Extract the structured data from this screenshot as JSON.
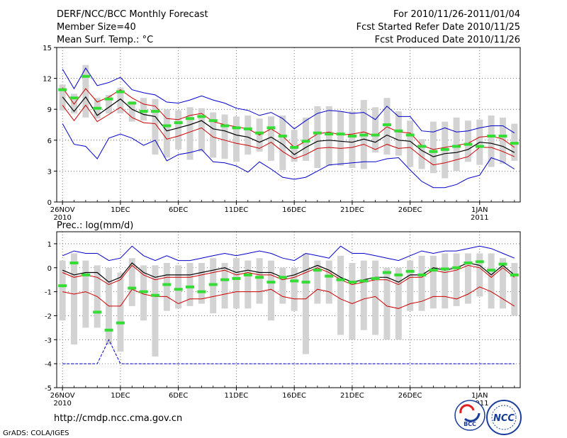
{
  "header": {
    "title": "DERF/NCC/BCC Monthly Forecast",
    "member_size": "Member Size=40",
    "variable": "Mean Surf. Temp.: °C",
    "for_range": "For 2010/11/26-2011/01/04",
    "fcst_started": "Fcst Started Refer Date 2010/11/25",
    "fcst_produced": "Fcst Produced Date 2010/11/26"
  },
  "footer": {
    "url": "http://cmdp.ncc.cma.gov.cn",
    "credit": "GrADS: COLA/IGES",
    "logo_left_text": "BCC",
    "logo_right_text": "NCC"
  },
  "colors": {
    "max_min": "#0000cc",
    "pct": "#cc0000",
    "mean": "#000000",
    "obs": "#33dd33",
    "box": "#d3d3d3",
    "grid": "#555555"
  },
  "chart_data": [
    {
      "type": "line",
      "title": "Mean Surf. Temp.: °C",
      "ylim": [
        0,
        15
      ],
      "yticks": [
        0,
        3,
        6,
        9,
        12,
        15
      ],
      "xticks": [
        {
          "day": 1,
          "label": "26NOV",
          "sub": "2010"
        },
        {
          "day": 6,
          "label": "1DEC",
          "sub": ""
        },
        {
          "day": 11,
          "label": "6DEC",
          "sub": ""
        },
        {
          "day": 16,
          "label": "11DEC",
          "sub": ""
        },
        {
          "day": 21,
          "label": "16DEC",
          "sub": ""
        },
        {
          "day": 26,
          "label": "21DEC",
          "sub": ""
        },
        {
          "day": 31,
          "label": "26DEC",
          "sub": ""
        },
        {
          "day": 37,
          "label": "1JAN",
          "sub": "2011"
        }
      ],
      "xlim": [
        0.5,
        40.5
      ],
      "grid": true,
      "x": [
        1,
        2,
        3,
        4,
        5,
        6,
        7,
        8,
        9,
        10,
        11,
        12,
        13,
        14,
        15,
        16,
        17,
        18,
        19,
        20,
        21,
        22,
        23,
        24,
        25,
        26,
        27,
        28,
        29,
        30,
        31,
        32,
        33,
        34,
        35,
        36,
        37,
        38,
        39,
        40
      ],
      "series": [
        {
          "name": "max",
          "values": [
            12.9,
            11.0,
            13.0,
            11.3,
            11.6,
            12.1,
            10.9,
            10.6,
            10.4,
            9.7,
            9.6,
            9.9,
            10.3,
            9.9,
            9.6,
            9.1,
            8.9,
            8.4,
            8.7,
            8.1,
            7.1,
            7.9,
            8.6,
            8.9,
            8.8,
            8.6,
            8.7,
            8.0,
            9.3,
            8.3,
            8.3,
            6.9,
            6.8,
            7.2,
            6.8,
            6.9,
            7.2,
            7.4,
            7.4,
            6.7
          ]
        },
        {
          "name": "p_high",
          "values": [
            11.1,
            9.5,
            11.0,
            9.7,
            10.2,
            10.9,
            10.1,
            9.5,
            9.3,
            8.1,
            8.0,
            8.4,
            8.6,
            7.8,
            7.5,
            7.3,
            7.1,
            6.5,
            7.1,
            6.4,
            5.3,
            5.9,
            6.6,
            6.8,
            6.5,
            6.6,
            6.8,
            6.4,
            7.3,
            6.8,
            6.7,
            5.5,
            5.1,
            5.3,
            5.5,
            5.7,
            6.3,
            6.4,
            6.1,
            5.3
          ]
        },
        {
          "name": "mean",
          "values": [
            10.2,
            8.8,
            10.2,
            8.4,
            9.2,
            10.0,
            9.0,
            8.5,
            8.3,
            6.9,
            7.2,
            7.5,
            7.9,
            7.1,
            6.9,
            6.5,
            6.3,
            5.8,
            6.3,
            5.6,
            4.6,
            5.3,
            5.9,
            6.0,
            5.9,
            5.8,
            6.1,
            5.8,
            6.5,
            6.0,
            5.9,
            5.0,
            4.4,
            4.7,
            4.8,
            5.1,
            5.8,
            5.7,
            5.4,
            4.8
          ]
        },
        {
          "name": "p_low",
          "values": [
            9.4,
            7.9,
            9.4,
            7.8,
            8.5,
            9.2,
            8.2,
            7.7,
            7.6,
            6.1,
            6.4,
            6.8,
            7.2,
            6.3,
            6.0,
            5.7,
            5.5,
            5.2,
            5.8,
            4.9,
            4.2,
            4.6,
            5.2,
            5.3,
            5.2,
            5.3,
            5.6,
            5.1,
            5.6,
            5.2,
            5.3,
            4.4,
            3.6,
            3.8,
            4.1,
            4.4,
            5.3,
            5.3,
            4.9,
            4.4
          ]
        },
        {
          "name": "min",
          "values": [
            7.6,
            5.6,
            5.4,
            4.2,
            6.2,
            6.6,
            6.2,
            5.5,
            6.0,
            4.0,
            4.6,
            4.8,
            5.1,
            3.9,
            3.8,
            3.5,
            2.9,
            3.9,
            3.2,
            2.4,
            2.2,
            2.4,
            3.0,
            3.6,
            3.7,
            3.8,
            3.9,
            3.9,
            4.2,
            4.3,
            3.1,
            2.0,
            1.4,
            1.4,
            1.7,
            2.3,
            2.6,
            4.3,
            3.9,
            3.2
          ]
        }
      ],
      "box_high": [
        11.4,
        10.5,
        13.3,
        10.1,
        10.4,
        11.1,
        9.8,
        10.1,
        10.0,
        9.0,
        8.9,
        9.2,
        9.1,
        8.7,
        8.5,
        8.3,
        8.4,
        8.1,
        8.3,
        8.4,
        7.0,
        8.2,
        9.3,
        9.3,
        8.8,
        8.8,
        9.9,
        9.2,
        10.1,
        8.8,
        7.9,
        6.1,
        7.8,
        7.8,
        8.2,
        7.9,
        8.0,
        8.4,
        8.2,
        7.6
      ],
      "box_low": [
        8.9,
        8.6,
        8.2,
        8.1,
        8.6,
        8.6,
        7.8,
        7.9,
        4.6,
        4.3,
        5.1,
        4.1,
        4.9,
        4.3,
        4.2,
        3.9,
        4.6,
        4.9,
        4.0,
        3.1,
        3.9,
        4.0,
        3.3,
        3.5,
        3.5,
        3.3,
        3.2,
        4.8,
        4.6,
        4.5,
        3.4,
        3.2,
        2.8,
        2.3,
        3.0,
        3.9,
        3.6,
        3.4,
        3.7,
        4.0
      ],
      "obs": [
        10.9,
        10.1,
        12.2,
        9.1,
        10.0,
        10.7,
        9.6,
        8.8,
        8.8,
        7.4,
        7.7,
        8.1,
        8.3,
        7.9,
        7.4,
        7.2,
        7.1,
        6.7,
        7.2,
        6.4,
        5.3,
        5.9,
        6.7,
        6.6,
        6.6,
        6.4,
        6.5,
        6.5,
        7.5,
        6.9,
        6.5,
        5.4,
        4.9,
        5.1,
        5.4,
        5.6,
        5.4,
        6.4,
        6.4,
        5.7
      ]
    },
    {
      "type": "line",
      "title": "Prec.: log(mm/d)",
      "ylim": [
        -5,
        1.5
      ],
      "yticks": [
        -5,
        -4,
        -3,
        -2,
        -1,
        0,
        1
      ],
      "xticks": [
        {
          "day": 1,
          "label": "26NOV",
          "sub": "2010"
        },
        {
          "day": 6,
          "label": "1DEC",
          "sub": ""
        },
        {
          "day": 11,
          "label": "6DEC",
          "sub": ""
        },
        {
          "day": 16,
          "label": "11DEC",
          "sub": ""
        },
        {
          "day": 21,
          "label": "16DEC",
          "sub": ""
        },
        {
          "day": 26,
          "label": "21DEC",
          "sub": ""
        },
        {
          "day": 31,
          "label": "26DEC",
          "sub": ""
        },
        {
          "day": 37,
          "label": "1JAN",
          "sub": "2011"
        }
      ],
      "xlim": [
        0.5,
        40.5
      ],
      "grid": true,
      "x": [
        1,
        2,
        3,
        4,
        5,
        6,
        7,
        8,
        9,
        10,
        11,
        12,
        13,
        14,
        15,
        16,
        17,
        18,
        19,
        20,
        21,
        22,
        23,
        24,
        25,
        26,
        27,
        28,
        29,
        30,
        31,
        32,
        33,
        34,
        35,
        36,
        37,
        38,
        39,
        40
      ],
      "series": [
        {
          "name": "max",
          "values": [
            0.5,
            0.7,
            0.6,
            0.6,
            0.3,
            0.4,
            0.9,
            0.5,
            0.3,
            0.5,
            0.3,
            0.3,
            0.4,
            0.5,
            0.6,
            0.5,
            0.6,
            0.7,
            0.6,
            0.4,
            0.3,
            0.6,
            0.5,
            0.4,
            0.9,
            0.6,
            0.6,
            0.5,
            0.4,
            0.3,
            0.5,
            0.7,
            0.6,
            0.7,
            0.7,
            0.8,
            0.9,
            0.8,
            0.6,
            0.4
          ]
        },
        {
          "name": "mean",
          "values": [
            -0.1,
            -0.3,
            -0.2,
            -0.2,
            -0.6,
            -0.4,
            0.2,
            -0.2,
            -0.4,
            -0.3,
            -0.3,
            -0.3,
            -0.2,
            -0.1,
            0.0,
            -0.2,
            -0.1,
            -0.2,
            -0.2,
            -0.4,
            -0.3,
            -0.1,
            0.1,
            -0.1,
            -0.4,
            -0.6,
            -0.5,
            -0.4,
            -0.4,
            -0.6,
            -0.3,
            -0.3,
            0.0,
            -0.1,
            0.0,
            0.2,
            0.1,
            -0.3,
            0.1,
            -0.3
          ]
        },
        {
          "name": "p_high",
          "values": [
            -0.2,
            -0.4,
            -0.3,
            -0.4,
            -0.7,
            -0.5,
            0.1,
            -0.3,
            -0.5,
            -0.4,
            -0.4,
            -0.4,
            -0.3,
            -0.2,
            -0.1,
            -0.3,
            -0.2,
            -0.3,
            -0.3,
            -0.5,
            -0.4,
            -0.2,
            0.0,
            -0.2,
            -0.5,
            -0.7,
            -0.6,
            -0.5,
            -0.5,
            -0.7,
            -0.4,
            -0.4,
            -0.1,
            -0.2,
            -0.1,
            0.1,
            0.0,
            -0.4,
            0.0,
            -0.4
          ]
        },
        {
          "name": "p_low",
          "values": [
            -1.0,
            -1.1,
            -1.0,
            -1.2,
            -1.6,
            -1.6,
            -0.9,
            -1.1,
            -1.2,
            -1.2,
            -1.5,
            -1.3,
            -1.3,
            -1.2,
            -1.1,
            -1.0,
            -1.0,
            -1.0,
            -0.9,
            -1.2,
            -1.3,
            -1.3,
            -0.9,
            -1.0,
            -1.3,
            -1.5,
            -1.3,
            -1.2,
            -1.6,
            -1.7,
            -1.5,
            -1.4,
            -1.2,
            -1.2,
            -1.3,
            -1.1,
            -0.8,
            -1.0,
            -1.3,
            -1.6
          ]
        },
        {
          "name": "min",
          "values": [
            -4.0,
            -4.0,
            -4.0,
            -4.0,
            -3.0,
            -4.0,
            -4.0,
            -4.0,
            -4.0,
            -4.0,
            -4.0,
            -4.0,
            -4.0,
            -4.0,
            -4.0,
            -4.0,
            -4.0,
            -4.0,
            -4.0,
            -4.0,
            -4.0,
            -4.0,
            -4.0,
            -4.0,
            -4.0,
            -4.0,
            -4.0,
            -4.0,
            -4.0,
            -4.0,
            -4.0,
            -4.0,
            -4.0,
            -4.0,
            -4.0,
            -4.0,
            -4.0,
            -4.0,
            -4.0,
            -4.0
          ]
        }
      ],
      "box_high": [
        0.3,
        0.6,
        0.3,
        0.1,
        0.0,
        -0.2,
        0.4,
        0.1,
        0.1,
        0.2,
        0.1,
        0.2,
        0.2,
        0.4,
        0.2,
        0.4,
        0.3,
        0.4,
        0.3,
        0.0,
        0.0,
        0.6,
        0.3,
        0.3,
        0.5,
        0.2,
        0.3,
        0.3,
        0.0,
        0.0,
        0.3,
        0.5,
        0.5,
        0.6,
        0.6,
        0.6,
        0.6,
        0.6,
        0.4,
        0.2
      ],
      "box_low": [
        -2.2,
        -3.2,
        -2.5,
        -2.5,
        -3.2,
        -3.5,
        -1.6,
        -2.2,
        -3.7,
        -1.8,
        -1.7,
        -1.6,
        -1.5,
        -1.9,
        -1.7,
        -1.7,
        -1.7,
        -1.5,
        -2.2,
        -1.5,
        -1.8,
        -3.6,
        -1.5,
        -1.5,
        -2.8,
        -3.0,
        -2.6,
        -2.8,
        -3.0,
        -3.0,
        -1.8,
        -1.8,
        -1.7,
        -1.7,
        -1.6,
        -1.5,
        -1.2,
        -1.7,
        -1.7,
        -2.0
      ],
      "obs": [
        -0.75,
        0.2,
        -0.3,
        -1.85,
        -2.6,
        -2.3,
        -0.85,
        -1.0,
        -1.15,
        -0.7,
        -0.9,
        -0.8,
        -1.0,
        -0.7,
        -0.5,
        -0.45,
        -0.3,
        -0.4,
        -0.6,
        -0.4,
        -0.55,
        -0.6,
        -0.1,
        -0.35,
        -0.5,
        -0.6,
        -0.55,
        -0.45,
        -0.2,
        -0.3,
        -0.15,
        -0.3,
        -0.1,
        -0.05,
        0.0,
        0.2,
        0.25,
        -0.1,
        0.15,
        -0.3
      ]
    }
  ]
}
